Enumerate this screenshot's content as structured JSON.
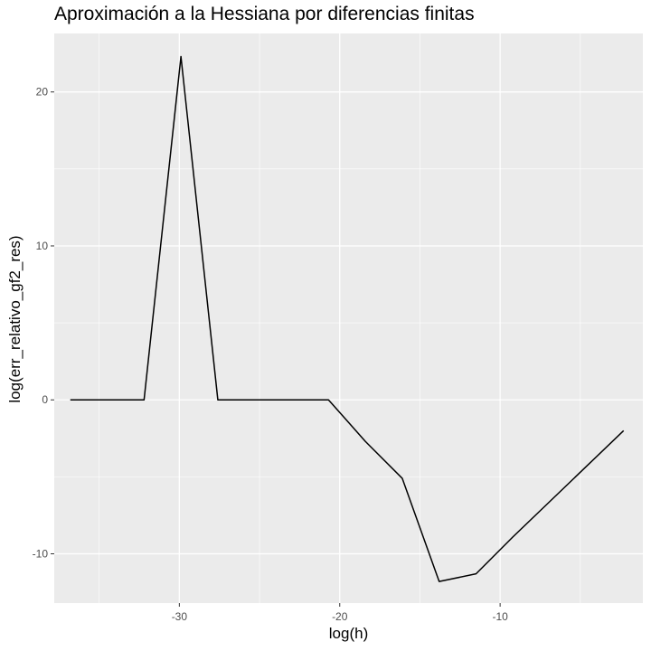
{
  "chart_data": {
    "type": "line",
    "title": "Aproximación a la Hessiana por diferencias finitas",
    "xlabel": "log(h)",
    "ylabel": "log(err_relativo_gf2_res)",
    "xlim": [
      -37.8,
      -1.1
    ],
    "ylim": [
      -13.2,
      23.8
    ],
    "x_ticks": [
      -30,
      -20,
      -10
    ],
    "x_tick_labels": [
      "-30",
      "-20",
      "-10"
    ],
    "y_ticks": [
      -10,
      0,
      10,
      20
    ],
    "y_tick_labels": [
      "-10",
      "0",
      "10",
      "20"
    ],
    "grid": true,
    "background": "#ebebeb",
    "grid_color": "#ffffff",
    "line_color": "#000000",
    "series": [
      {
        "x": [
          -36.8,
          -34.5,
          -32.2,
          -29.9,
          -27.6,
          -25.3,
          -23.0,
          -20.7,
          -18.4,
          -16.1,
          -13.8,
          -11.5,
          -9.2,
          -6.9,
          -4.6,
          -2.3
        ],
        "y": [
          0.0,
          0.0,
          0.0,
          22.3,
          0.0,
          0.0,
          0.0,
          0.0,
          -2.7,
          -5.1,
          -11.8,
          -11.3,
          -8.9,
          -6.6,
          -4.3,
          -2.0
        ]
      }
    ]
  }
}
